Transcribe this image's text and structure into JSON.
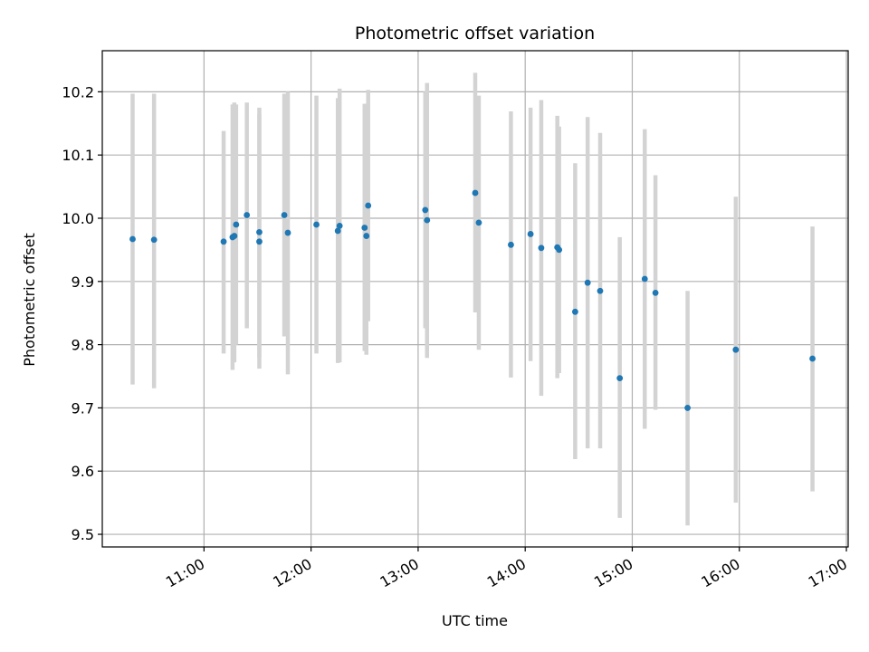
{
  "chart_data": {
    "type": "scatter",
    "title": "Photometric offset variation",
    "xlabel": "UTC time",
    "ylabel": "Photometric offset",
    "x_ticks": [
      "11:00",
      "12:00",
      "13:00",
      "14:00",
      "15:00",
      "16:00",
      "17:00"
    ],
    "y_ticks": [
      "9.5",
      "9.6",
      "9.7",
      "9.8",
      "9.9",
      "10.0",
      "10.1",
      "10.2"
    ],
    "xlim": [
      "10:03",
      "17:01"
    ],
    "ylim": [
      9.48,
      10.265
    ],
    "grid": true,
    "x_tick_rotation": 30,
    "colors": {
      "points": "#1f77b4",
      "errorbars": "#d3d3d3",
      "grid": "#b0b0b0"
    },
    "points": [
      {
        "x": "10:20",
        "y": 9.967,
        "ylo": 9.737,
        "yhi": 10.197
      },
      {
        "x": "10:32",
        "y": 9.966,
        "ylo": 9.731,
        "yhi": 10.197
      },
      {
        "x": "11:11",
        "y": 9.963,
        "ylo": 9.786,
        "yhi": 10.138
      },
      {
        "x": "11:16",
        "y": 9.97,
        "ylo": 9.76,
        "yhi": 10.18
      },
      {
        "x": "11:17",
        "y": 9.972,
        "ylo": 9.772,
        "yhi": 10.183
      },
      {
        "x": "11:18",
        "y": 9.99,
        "ylo": 9.8,
        "yhi": 10.18
      },
      {
        "x": "11:24",
        "y": 10.005,
        "ylo": 9.826,
        "yhi": 10.183
      },
      {
        "x": "11:31",
        "y": 9.978,
        "ylo": 9.78,
        "yhi": 10.175
      },
      {
        "x": "11:31",
        "y": 9.963,
        "ylo": 9.762,
        "yhi": 10.165
      },
      {
        "x": "11:45",
        "y": 10.005,
        "ylo": 9.813,
        "yhi": 10.197
      },
      {
        "x": "11:47",
        "y": 9.977,
        "ylo": 9.753,
        "yhi": 10.2
      },
      {
        "x": "12:03",
        "y": 9.99,
        "ylo": 9.786,
        "yhi": 10.194
      },
      {
        "x": "12:15",
        "y": 9.98,
        "ylo": 9.771,
        "yhi": 10.19
      },
      {
        "x": "12:16",
        "y": 9.988,
        "ylo": 9.772,
        "yhi": 10.205
      },
      {
        "x": "12:30",
        "y": 9.985,
        "ylo": 9.79,
        "yhi": 10.181
      },
      {
        "x": "12:31",
        "y": 9.972,
        "ylo": 9.784,
        "yhi": 10.181
      },
      {
        "x": "12:32",
        "y": 10.02,
        "ylo": 9.837,
        "yhi": 10.203
      },
      {
        "x": "13:04",
        "y": 10.013,
        "ylo": 9.826,
        "yhi": 10.2
      },
      {
        "x": "13:05",
        "y": 9.997,
        "ylo": 9.779,
        "yhi": 10.214
      },
      {
        "x": "13:32",
        "y": 10.04,
        "ylo": 9.851,
        "yhi": 10.23
      },
      {
        "x": "13:34",
        "y": 9.993,
        "ylo": 9.792,
        "yhi": 10.194
      },
      {
        "x": "13:52",
        "y": 9.958,
        "ylo": 9.748,
        "yhi": 10.169
      },
      {
        "x": "14:03",
        "y": 9.975,
        "ylo": 9.774,
        "yhi": 10.175
      },
      {
        "x": "14:09",
        "y": 9.953,
        "ylo": 9.719,
        "yhi": 10.187
      },
      {
        "x": "14:18",
        "y": 9.954,
        "ylo": 9.747,
        "yhi": 10.162
      },
      {
        "x": "14:19",
        "y": 9.95,
        "ylo": 9.755,
        "yhi": 10.145
      },
      {
        "x": "14:28",
        "y": 9.852,
        "ylo": 9.619,
        "yhi": 10.087
      },
      {
        "x": "14:35",
        "y": 9.898,
        "ylo": 9.636,
        "yhi": 10.16
      },
      {
        "x": "14:42",
        "y": 9.885,
        "ylo": 9.636,
        "yhi": 10.135
      },
      {
        "x": "14:53",
        "y": 9.747,
        "ylo": 9.526,
        "yhi": 9.97
      },
      {
        "x": "15:07",
        "y": 9.904,
        "ylo": 9.667,
        "yhi": 10.141
      },
      {
        "x": "15:13",
        "y": 9.882,
        "ylo": 9.697,
        "yhi": 10.068
      },
      {
        "x": "15:31",
        "y": 9.7,
        "ylo": 9.514,
        "yhi": 9.885
      },
      {
        "x": "15:58",
        "y": 9.792,
        "ylo": 9.55,
        "yhi": 10.034
      },
      {
        "x": "16:41",
        "y": 9.778,
        "ylo": 9.568,
        "yhi": 9.987
      }
    ]
  }
}
